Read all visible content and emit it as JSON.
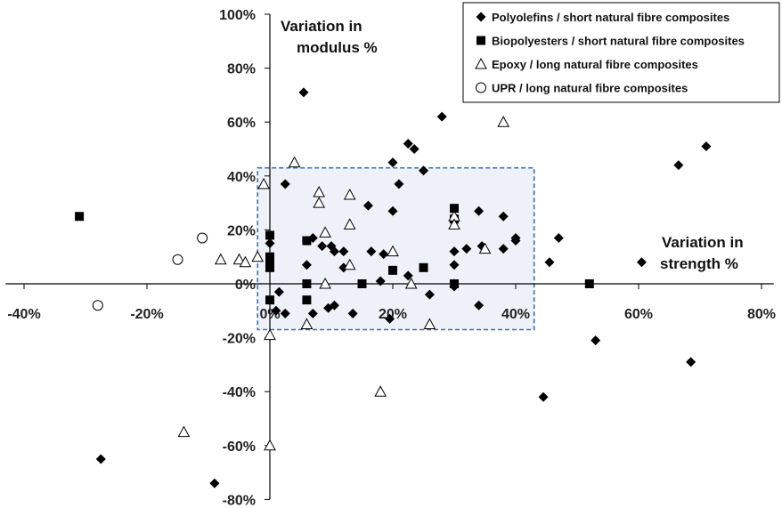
{
  "chart_data": {
    "type": "scatter",
    "x_axis": {
      "label_line1": "Variation in",
      "label_line2": "strength  %",
      "range": [
        -0.43,
        0.82
      ],
      "ticks": [
        -0.4,
        -0.2,
        0,
        0.2,
        0.4,
        0.6,
        0.8
      ],
      "tick_labels": [
        "-40%",
        "-20%",
        "0%",
        "20%",
        "40%",
        "60%",
        "80%"
      ]
    },
    "y_axis": {
      "label_line1": "Variation in",
      "label_line2": "modulus  %",
      "range": [
        -0.8,
        1.0
      ],
      "ticks": [
        1.0,
        0.8,
        0.6,
        0.4,
        0.2,
        0,
        -0.2,
        -0.4,
        -0.6,
        -0.8
      ],
      "tick_labels": [
        "100%",
        "80%",
        "60%",
        "40%",
        "20%",
        "0%",
        "-20%",
        "-40%",
        "-60%",
        "-80%"
      ]
    },
    "grid": false,
    "legend_position": "top-right",
    "highlight_region": {
      "x": [
        -0.02,
        0.43
      ],
      "y": [
        -0.17,
        0.43
      ],
      "fill": "#eef2f8",
      "stroke": "#3f6fb0"
    },
    "series": [
      {
        "name": "Polyolefins / short natural fibre composites",
        "marker": "diamond",
        "color": "#000000",
        "points": [
          [
            0.055,
            0.71
          ],
          [
            0.28,
            0.62
          ],
          [
            0.225,
            0.52
          ],
          [
            0.235,
            0.5
          ],
          [
            0.2,
            0.45
          ],
          [
            0.25,
            0.42
          ],
          [
            0.665,
            0.44
          ],
          [
            0.71,
            0.51
          ],
          [
            0.025,
            0.37
          ],
          [
            0.21,
            0.37
          ],
          [
            0.16,
            0.29
          ],
          [
            0.2,
            0.27
          ],
          [
            0.34,
            0.27
          ],
          [
            0.38,
            0.25
          ],
          [
            0.0,
            0.15
          ],
          [
            0.06,
            0.16
          ],
          [
            0.07,
            0.17
          ],
          [
            0.085,
            0.14
          ],
          [
            0.1,
            0.14
          ],
          [
            0.12,
            0.12
          ],
          [
            0.105,
            0.12
          ],
          [
            0.3,
            0.12
          ],
          [
            0.32,
            0.13
          ],
          [
            0.345,
            0.14
          ],
          [
            0.38,
            0.13
          ],
          [
            0.4,
            0.17
          ],
          [
            0.4,
            0.16
          ],
          [
            0.47,
            0.17
          ],
          [
            0.455,
            0.08
          ],
          [
            0.605,
            0.08
          ],
          [
            0.06,
            0.07
          ],
          [
            0.12,
            0.06
          ],
          [
            0.165,
            0.12
          ],
          [
            0.185,
            0.11
          ],
          [
            0.3,
            0.07
          ],
          [
            0.225,
            0.03
          ],
          [
            0.3,
            0.0
          ],
          [
            0.3,
            -0.01
          ],
          [
            0.18,
            0.01
          ],
          [
            0.015,
            -0.03
          ],
          [
            0.26,
            -0.04
          ],
          [
            0.01,
            -0.1
          ],
          [
            0.025,
            -0.11
          ],
          [
            0.07,
            -0.11
          ],
          [
            0.095,
            -0.09
          ],
          [
            0.105,
            -0.08
          ],
          [
            0.135,
            -0.11
          ],
          [
            0.195,
            -0.13
          ],
          [
            0.34,
            -0.08
          ],
          [
            0.53,
            -0.21
          ],
          [
            0.685,
            -0.29
          ],
          [
            0.445,
            -0.42
          ],
          [
            -0.275,
            -0.65
          ],
          [
            -0.09,
            -0.74
          ]
        ]
      },
      {
        "name": "Biopolyesters / short natural fibre composites",
        "marker": "square",
        "color": "#000000",
        "points": [
          [
            -0.31,
            0.25
          ],
          [
            0.0,
            0.18
          ],
          [
            0.0,
            0.1
          ],
          [
            0.0,
            0.08
          ],
          [
            0.0,
            0.06
          ],
          [
            0.06,
            0.16
          ],
          [
            0.3,
            0.28
          ],
          [
            0.3,
            0.24
          ],
          [
            0.25,
            0.06
          ],
          [
            0.2,
            0.05
          ],
          [
            0.06,
            0.0
          ],
          [
            0.15,
            0.0
          ],
          [
            0.3,
            0.0
          ],
          [
            0.52,
            0.0
          ],
          [
            0.0,
            -0.06
          ],
          [
            0.06,
            -0.06
          ]
        ]
      },
      {
        "name": "Epoxy / long natural fibre composites",
        "marker": "triangle",
        "color": "#000000",
        "points": [
          [
            0.38,
            0.6
          ],
          [
            0.04,
            0.45
          ],
          [
            -0.01,
            0.37
          ],
          [
            0.08,
            0.34
          ],
          [
            0.08,
            0.3
          ],
          [
            0.13,
            0.33
          ],
          [
            0.3,
            0.25
          ],
          [
            0.3,
            0.22
          ],
          [
            0.13,
            0.22
          ],
          [
            0.09,
            0.19
          ],
          [
            0.35,
            0.13
          ],
          [
            -0.08,
            0.09
          ],
          [
            -0.05,
            0.09
          ],
          [
            -0.04,
            0.08
          ],
          [
            -0.02,
            0.1
          ],
          [
            0.2,
            0.12
          ],
          [
            0.13,
            0.07
          ],
          [
            0.09,
            0.0
          ],
          [
            0.23,
            0.0
          ],
          [
            0.0,
            -0.19
          ],
          [
            0.06,
            -0.15
          ],
          [
            0.26,
            -0.15
          ],
          [
            0.18,
            -0.4
          ],
          [
            -0.14,
            -0.55
          ],
          [
            0.0,
            -0.6
          ]
        ]
      },
      {
        "name": "UPR / long natural fibre composites",
        "marker": "circle",
        "color": "#000000",
        "points": [
          [
            -0.11,
            0.17
          ],
          [
            -0.15,
            0.09
          ],
          [
            -0.28,
            -0.08
          ]
        ]
      }
    ]
  }
}
